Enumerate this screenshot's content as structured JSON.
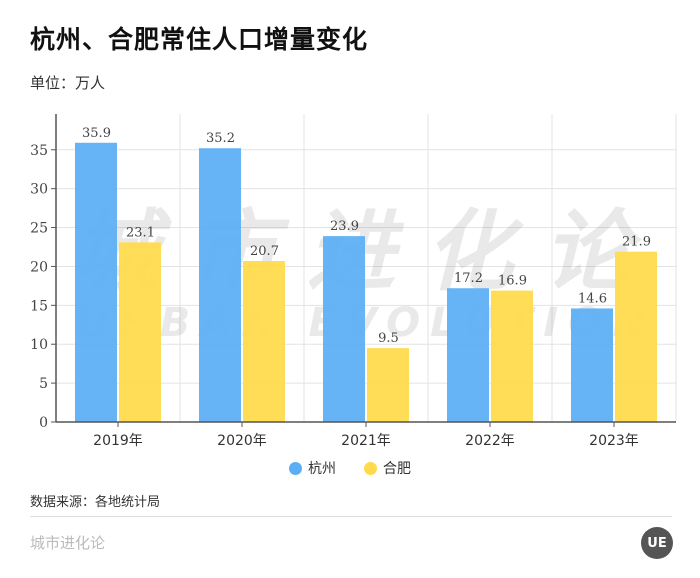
{
  "title": "杭州、合肥常住人口增量变化",
  "unit": "单位：万人",
  "source": "数据来源：各地统计局",
  "brand": "城市进化论",
  "logo": "UE",
  "watermark": {
    "cn": "城市进化论",
    "en": "URBAN EVOLUTION"
  },
  "chart_data": {
    "type": "bar",
    "categories": [
      "2019年",
      "2020年",
      "2021年",
      "2022年",
      "2023年"
    ],
    "series": [
      {
        "name": "杭州",
        "color": "#5AAEF5",
        "values": [
          35.9,
          35.2,
          23.9,
          17.2,
          14.6
        ]
      },
      {
        "name": "合肥",
        "color": "#FFDA4A",
        "values": [
          23.1,
          20.7,
          9.5,
          16.9,
          21.9
        ]
      }
    ],
    "yticks": [
      0,
      5,
      10,
      15,
      20,
      25,
      30,
      35
    ],
    "ylim": [
      0,
      39.6
    ],
    "grid": true,
    "legend": "bottom-center"
  }
}
